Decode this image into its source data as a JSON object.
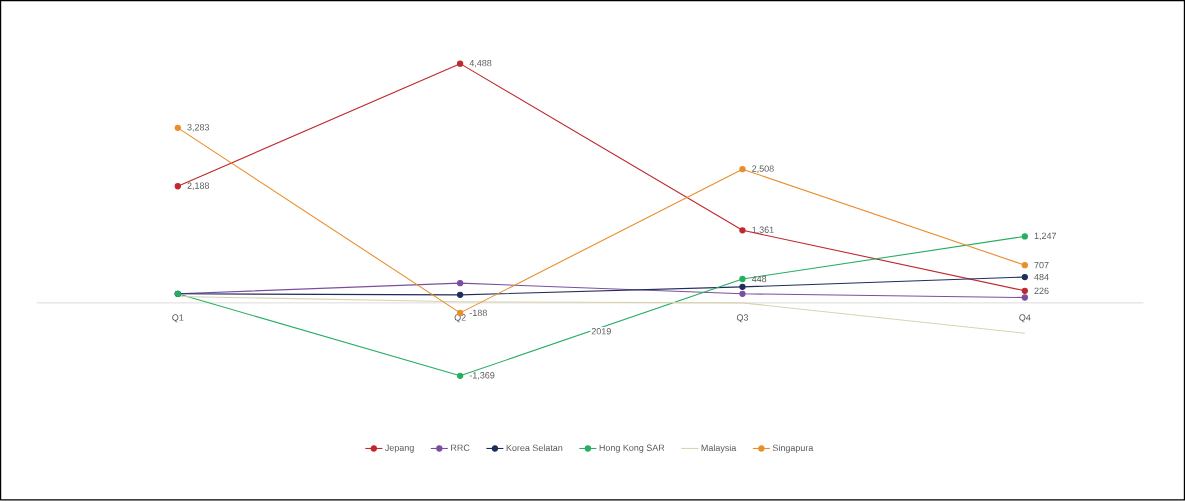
{
  "chart_data": {
    "type": "line",
    "categories": [
      "Q1",
      "Q2",
      "Q3",
      "Q4"
    ],
    "xlabel": "2019",
    "tick_labels": "x",
    "grid": false,
    "legend": "bottom",
    "marker": "circle",
    "series": [
      {
        "name": "Jepang",
        "color": "#c0282d",
        "values": [
          2188,
          4488,
          1361,
          226
        ],
        "value_labels": [
          "2,188",
          "4,488",
          "1,361",
          "226"
        ]
      },
      {
        "name": "RRC",
        "color": "#7b4f9d",
        "values": [
          170,
          370,
          170,
          100
        ]
      },
      {
        "name": "Korea Selatan",
        "color": "#1f2d5c",
        "values": [
          170,
          150,
          300,
          484
        ],
        "value_labels": [
          null,
          null,
          null,
          "484"
        ]
      },
      {
        "name": "Hong Kong SAR",
        "color": "#27ae60",
        "values": [
          170,
          -1369,
          448,
          1247
        ],
        "value_labels": [
          null,
          "-1,369",
          "448",
          "1,247"
        ]
      },
      {
        "name": "Malaysia",
        "color": "#d9d3b0",
        "marker": "none",
        "values": [
          120,
          20,
          0,
          -570
        ]
      },
      {
        "name": "Singapura",
        "color": "#e88f2c",
        "values": [
          3283,
          -188,
          2508,
          707
        ],
        "value_labels": [
          "3,283",
          "-188",
          "2,508",
          "707"
        ]
      }
    ]
  }
}
